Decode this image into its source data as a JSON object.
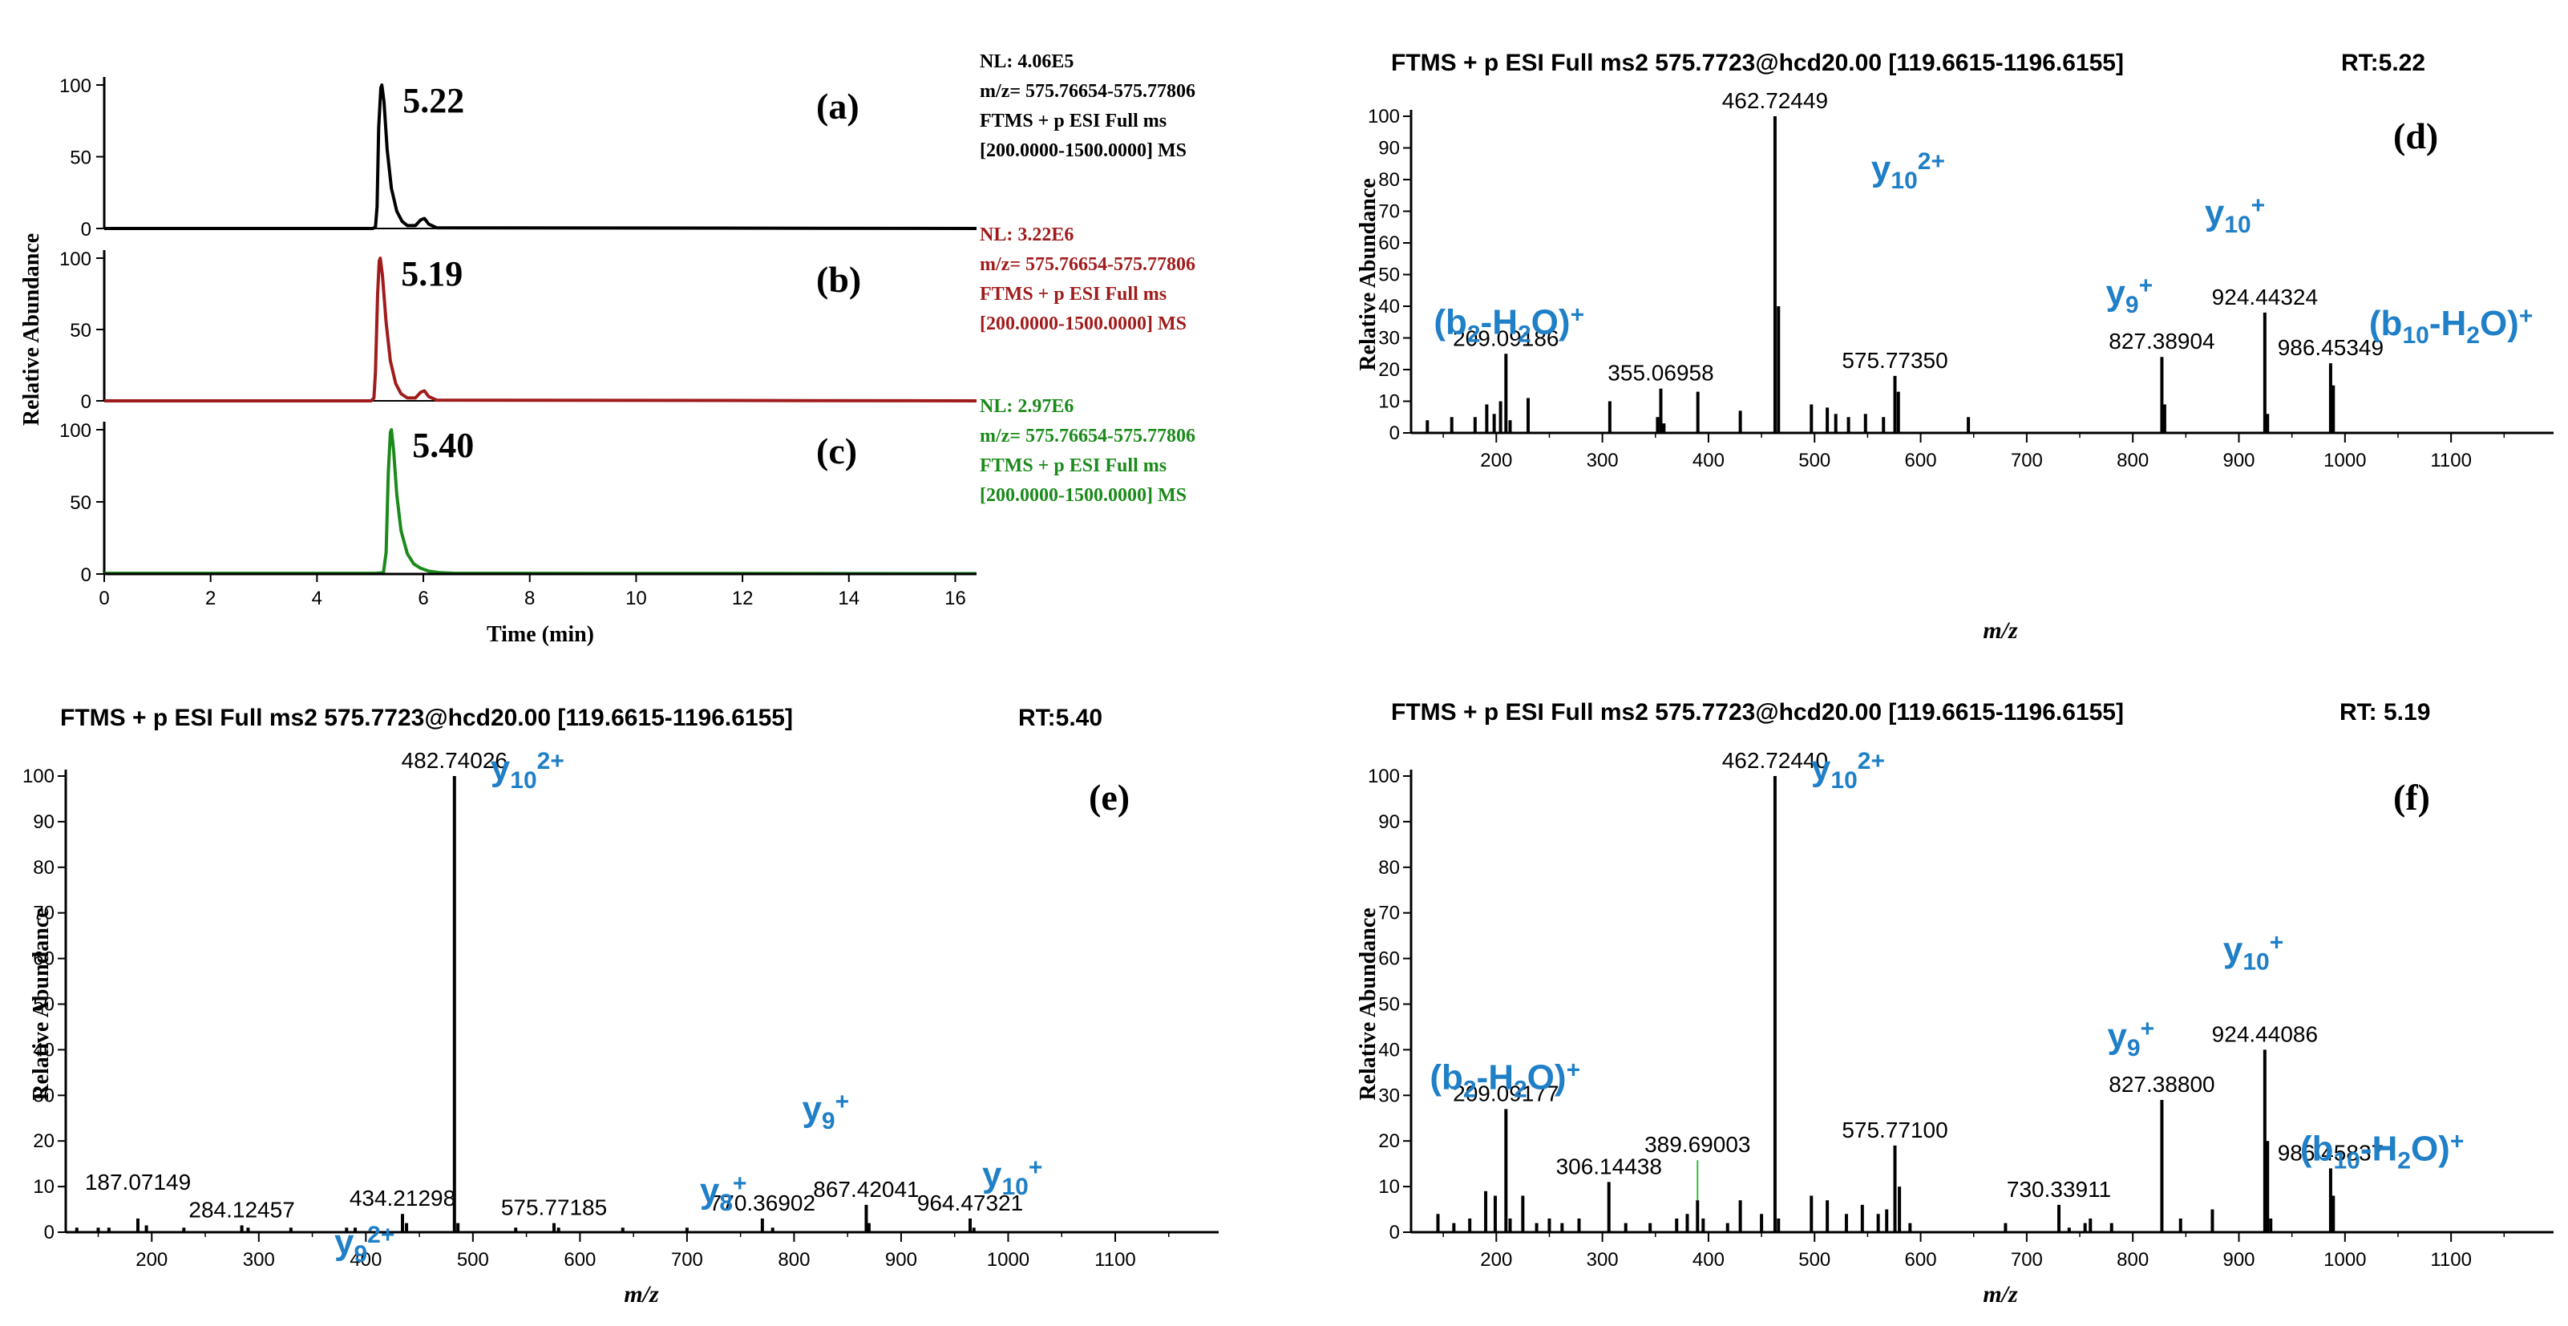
{
  "chart_data": [
    {
      "id": "chrom",
      "type": "line",
      "xlabel": "Time (min)",
      "ylabel": "Relative Abundance",
      "xlim": [
        0,
        16.4
      ],
      "ylim": [
        0,
        100
      ],
      "xticks": [
        "0",
        "2",
        "4",
        "6",
        "8",
        "10",
        "12",
        "14",
        "16"
      ],
      "yticks": [
        "0",
        "50",
        "100"
      ],
      "traces": [
        {
          "panel": "(a)",
          "color": "#000000",
          "rt_label": "5.22",
          "info": [
            "NL: 4.06E5",
            "m/z= 575.76654-575.77806",
            "FTMS + p ESI Full ms",
            "[200.0000-1500.0000]  MS"
          ],
          "points": [
            [
              0,
              0
            ],
            [
              5.05,
              0
            ],
            [
              5.1,
              1
            ],
            [
              5.13,
              15
            ],
            [
              5.16,
              70
            ],
            [
              5.2,
              98
            ],
            [
              5.22,
              100
            ],
            [
              5.26,
              88
            ],
            [
              5.32,
              55
            ],
            [
              5.4,
              28
            ],
            [
              5.5,
              12
            ],
            [
              5.6,
              5
            ],
            [
              5.7,
              2
            ],
            [
              5.85,
              2
            ],
            [
              5.95,
              6
            ],
            [
              6.02,
              7
            ],
            [
              6.1,
              3
            ],
            [
              6.25,
              0.5
            ],
            [
              16.4,
              0
            ]
          ]
        },
        {
          "panel": "(b)",
          "color": "#a01c1c",
          "rt_label": "5.19",
          "info": [
            "NL: 3.22E6",
            "m/z= 575.76654-575.77806",
            "FTMS + p ESI Full ms",
            "[200.0000-1500.0000]  MS"
          ],
          "points": [
            [
              0,
              0
            ],
            [
              5.02,
              0
            ],
            [
              5.07,
              2
            ],
            [
              5.1,
              20
            ],
            [
              5.14,
              75
            ],
            [
              5.17,
              98
            ],
            [
              5.19,
              100
            ],
            [
              5.23,
              88
            ],
            [
              5.3,
              55
            ],
            [
              5.38,
              28
            ],
            [
              5.48,
              12
            ],
            [
              5.58,
              5
            ],
            [
              5.7,
              2
            ],
            [
              5.85,
              2
            ],
            [
              5.95,
              6
            ],
            [
              6.02,
              7
            ],
            [
              6.1,
              3
            ],
            [
              6.25,
              0.5
            ],
            [
              16.4,
              0
            ]
          ]
        },
        {
          "panel": "(c)",
          "color": "#1a8a1a",
          "rt_label": "5.40",
          "info": [
            "NL: 2.97E6",
            "m/z= 575.76654-575.77806",
            "FTMS + p ESI Full ms",
            "[200.0000-1500.0000]  MS"
          ],
          "points": [
            [
              0,
              0.5
            ],
            [
              5.1,
              0.5
            ],
            [
              5.25,
              1
            ],
            [
              5.3,
              15
            ],
            [
              5.34,
              70
            ],
            [
              5.38,
              98
            ],
            [
              5.4,
              100
            ],
            [
              5.44,
              86
            ],
            [
              5.5,
              55
            ],
            [
              5.58,
              30
            ],
            [
              5.7,
              14
            ],
            [
              5.82,
              7
            ],
            [
              5.95,
              4
            ],
            [
              6.1,
              2
            ],
            [
              6.3,
              1
            ],
            [
              6.6,
              0.5
            ],
            [
              16.4,
              0.3
            ]
          ]
        }
      ]
    },
    {
      "id": "d",
      "type": "bar",
      "panel": "(d)",
      "header": "FTMS + p ESI Full ms2 575.7723@hcd20.00 [119.6615-1196.6155]",
      "rt": "RT:5.22",
      "xlabel": "m/z",
      "ylabel": "Relative Abundance",
      "xlim": [
        119.66,
        1196.62
      ],
      "ylim": [
        0,
        100
      ],
      "xticks": [
        "200",
        "300",
        "400",
        "500",
        "600",
        "700",
        "800",
        "900",
        "1000",
        "1100"
      ],
      "yticks": [
        "0",
        "10",
        "20",
        "30",
        "40",
        "50",
        "60",
        "70",
        "80",
        "90",
        "100"
      ],
      "peaks": [
        [
          135,
          4
        ],
        [
          158,
          5
        ],
        [
          180,
          5
        ],
        [
          191,
          9
        ],
        [
          198,
          6
        ],
        [
          204,
          10
        ],
        [
          209.09,
          25
        ],
        [
          213,
          4
        ],
        [
          230,
          11
        ],
        [
          307,
          10
        ],
        [
          352,
          5
        ],
        [
          355.07,
          14
        ],
        [
          358,
          3
        ],
        [
          390,
          13
        ],
        [
          430,
          7
        ],
        [
          462.72,
          100
        ],
        [
          466,
          40
        ],
        [
          497,
          9
        ],
        [
          512,
          8
        ],
        [
          520,
          6
        ],
        [
          532,
          5
        ],
        [
          548,
          6
        ],
        [
          565,
          5
        ],
        [
          575.77,
          18
        ],
        [
          579,
          13
        ],
        [
          645,
          5
        ],
        [
          827.39,
          24
        ],
        [
          830,
          9
        ],
        [
          924.44,
          38
        ],
        [
          927,
          6
        ],
        [
          986.45,
          22
        ],
        [
          989,
          15
        ]
      ],
      "peak_labels": [
        {
          "text": "462.72449",
          "x": 462.72,
          "y": 100
        },
        {
          "text": "209.09186",
          "x": 209.09,
          "y": 25
        },
        {
          "text": "355.06958",
          "x": 355.07,
          "y": 14
        },
        {
          "text": "575.77350",
          "x": 575.77,
          "y": 18
        },
        {
          "text": "827.38904",
          "x": 827.39,
          "y": 24
        },
        {
          "text": "924.44324",
          "x": 924.44,
          "y": 38
        },
        {
          "text": "986.45349",
          "x": 986.45,
          "y": 22
        }
      ],
      "ion_labels": [
        {
          "ion": "y",
          "sub": "10",
          "sup": "2+",
          "x": 462.72,
          "y": 100
        },
        {
          "ion": "(b",
          "sub": "2",
          "mid": "-H",
          "sub2": "2",
          "tail": "O)",
          "sup": "+",
          "x": 209.09,
          "y": 25
        },
        {
          "ion": "y",
          "sub": "9",
          "sup": "+",
          "x": 827.39,
          "y": 24
        },
        {
          "ion": "y",
          "sub": "10",
          "sup": "+",
          "x": 924.44,
          "y": 38
        },
        {
          "ion": "(b",
          "sub": "10",
          "mid": "-H",
          "sub2": "2",
          "tail": "O)",
          "sup": "+",
          "x": 986.45,
          "y": 22
        }
      ]
    },
    {
      "id": "e",
      "type": "bar",
      "panel": "(e)",
      "header": "FTMS + p ESI Full ms2 575.7723@hcd20.00 [119.6615-1196.6155]",
      "rt": "RT:5.40",
      "xlabel": "m/z",
      "ylabel": "Relative Abundance",
      "xlim": [
        119.66,
        1196.62
      ],
      "ylim": [
        0,
        100
      ],
      "xticks": [
        "200",
        "300",
        "400",
        "500",
        "600",
        "700",
        "800",
        "900",
        "1000",
        "1100"
      ],
      "yticks": [
        "0",
        "10",
        "20",
        "30",
        "40",
        "50",
        "60",
        "70",
        "80",
        "90",
        "100"
      ],
      "peaks": [
        [
          130,
          1
        ],
        [
          150,
          1
        ],
        [
          160,
          1
        ],
        [
          187.07,
          3
        ],
        [
          195,
          1.5
        ],
        [
          230,
          1
        ],
        [
          284.12,
          1.5
        ],
        [
          290,
          1
        ],
        [
          330,
          1
        ],
        [
          382,
          1
        ],
        [
          390,
          1
        ],
        [
          434.21,
          4
        ],
        [
          438,
          2
        ],
        [
          482.74,
          100
        ],
        [
          486,
          2
        ],
        [
          540,
          1
        ],
        [
          575.77,
          2
        ],
        [
          580,
          1
        ],
        [
          640,
          1
        ],
        [
          700,
          1
        ],
        [
          770.37,
          3
        ],
        [
          780,
          1
        ],
        [
          867.42,
          6
        ],
        [
          870,
          2
        ],
        [
          964.47,
          3
        ],
        [
          968,
          1
        ]
      ],
      "peak_labels": [
        {
          "text": "482.74026",
          "x": 482.74,
          "y": 100
        },
        {
          "text": "187.07149",
          "x": 187.07,
          "y": 3
        },
        {
          "text": "284.12457",
          "x": 284.12,
          "y": 1.5
        },
        {
          "text": "434.21298",
          "x": 434.21,
          "y": 4
        },
        {
          "text": "575.77185",
          "x": 575.77,
          "y": 2
        },
        {
          "text": "770.36902",
          "x": 770.37,
          "y": 3
        },
        {
          "text": "867.42041",
          "x": 867.42,
          "y": 6
        },
        {
          "text": "964.47321",
          "x": 964.47,
          "y": 3
        }
      ],
      "ion_labels": [
        {
          "ion": "y",
          "sub": "10",
          "sup": "2+",
          "x": 482.74,
          "y": 100
        },
        {
          "ion": "y",
          "sub": "9",
          "sup": "2+",
          "x": 434.21,
          "y": 4
        },
        {
          "ion": "y",
          "sub": "8",
          "sup": "+",
          "x": 770.37,
          "y": 3
        },
        {
          "ion": "y",
          "sub": "9",
          "sup": "+",
          "x": 867.42,
          "y": 6
        },
        {
          "ion": "y",
          "sub": "10",
          "sup": "+",
          "x": 964.47,
          "y": 3
        }
      ]
    },
    {
      "id": "f",
      "type": "bar",
      "panel": "(f)",
      "header": "FTMS + p ESI Full ms2 575.7723@hcd20.00 [119.6615-1196.6155]",
      "rt": "RT: 5.19",
      "xlabel": "m/z",
      "ylabel": "Relative Abundance",
      "xlim": [
        119.66,
        1196.62
      ],
      "ylim": [
        0,
        100
      ],
      "xticks": [
        "200",
        "300",
        "400",
        "500",
        "600",
        "700",
        "800",
        "900",
        "1000",
        "1100"
      ],
      "yticks": [
        "0",
        "10",
        "20",
        "30",
        "40",
        "50",
        "60",
        "70",
        "80",
        "90",
        "100"
      ],
      "peaks": [
        [
          145,
          4
        ],
        [
          160,
          2
        ],
        [
          175,
          3
        ],
        [
          190,
          9
        ],
        [
          199,
          8
        ],
        [
          209.09,
          27
        ],
        [
          213,
          3
        ],
        [
          225,
          8
        ],
        [
          238,
          2
        ],
        [
          250,
          3
        ],
        [
          262,
          2
        ],
        [
          278,
          3
        ],
        [
          306.14,
          11
        ],
        [
          322,
          2
        ],
        [
          345,
          2
        ],
        [
          370,
          3
        ],
        [
          380,
          4
        ],
        [
          389.69,
          7
        ],
        [
          395,
          3
        ],
        [
          418,
          2
        ],
        [
          430,
          7
        ],
        [
          450,
          4
        ],
        [
          462.72,
          100
        ],
        [
          466,
          3
        ],
        [
          497,
          8
        ],
        [
          512,
          7
        ],
        [
          530,
          4
        ],
        [
          545,
          6
        ],
        [
          560,
          4
        ],
        [
          568,
          5
        ],
        [
          575.77,
          19
        ],
        [
          580,
          10
        ],
        [
          590,
          2
        ],
        [
          680,
          2
        ],
        [
          730.34,
          6
        ],
        [
          740,
          1
        ],
        [
          755,
          2
        ],
        [
          760,
          3
        ],
        [
          780,
          2
        ],
        [
          827.39,
          29
        ],
        [
          845,
          3
        ],
        [
          875,
          5
        ],
        [
          924.44,
          40
        ],
        [
          927,
          20
        ],
        [
          930,
          3
        ],
        [
          986.46,
          14
        ],
        [
          989,
          8
        ]
      ],
      "peak_labels": [
        {
          "text": "462.72440",
          "x": 462.72,
          "y": 100
        },
        {
          "text": "209.09177",
          "x": 209.09,
          "y": 27
        },
        {
          "text": "306.14438",
          "x": 306.14,
          "y": 11
        },
        {
          "text": "389.69003",
          "x": 389.69,
          "y": 7
        },
        {
          "text": "575.77100",
          "x": 575.77,
          "y": 19
        },
        {
          "text": "730.33911",
          "x": 730.34,
          "y": 6
        },
        {
          "text": "827.38800",
          "x": 827.39,
          "y": 29
        },
        {
          "text": "924.44086",
          "x": 924.44,
          "y": 40
        },
        {
          "text": "986.45837",
          "x": 986.46,
          "y": 14
        }
      ],
      "ion_labels": [
        {
          "ion": "y",
          "sub": "10",
          "sup": "2+",
          "x": 462.72,
          "y": 100
        },
        {
          "ion": "(b",
          "sub": "2",
          "mid": "-H",
          "sub2": "2",
          "tail": "O)",
          "sup": "+",
          "x": 209.09,
          "y": 27
        },
        {
          "ion": "y",
          "sub": "9",
          "sup": "+",
          "x": 827.39,
          "y": 29
        },
        {
          "ion": "y",
          "sub": "10",
          "sup": "+",
          "x": 924.44,
          "y": 40
        },
        {
          "ion": "(b",
          "sub": "10",
          "mid": "-H",
          "sub2": "2",
          "tail": "O)",
          "sup": "+",
          "x": 986.46,
          "y": 14
        }
      ]
    }
  ],
  "colors": {
    "ion_label": "#1f7fc7",
    "axis": "#000000",
    "annotation_line": "#33bb33"
  }
}
